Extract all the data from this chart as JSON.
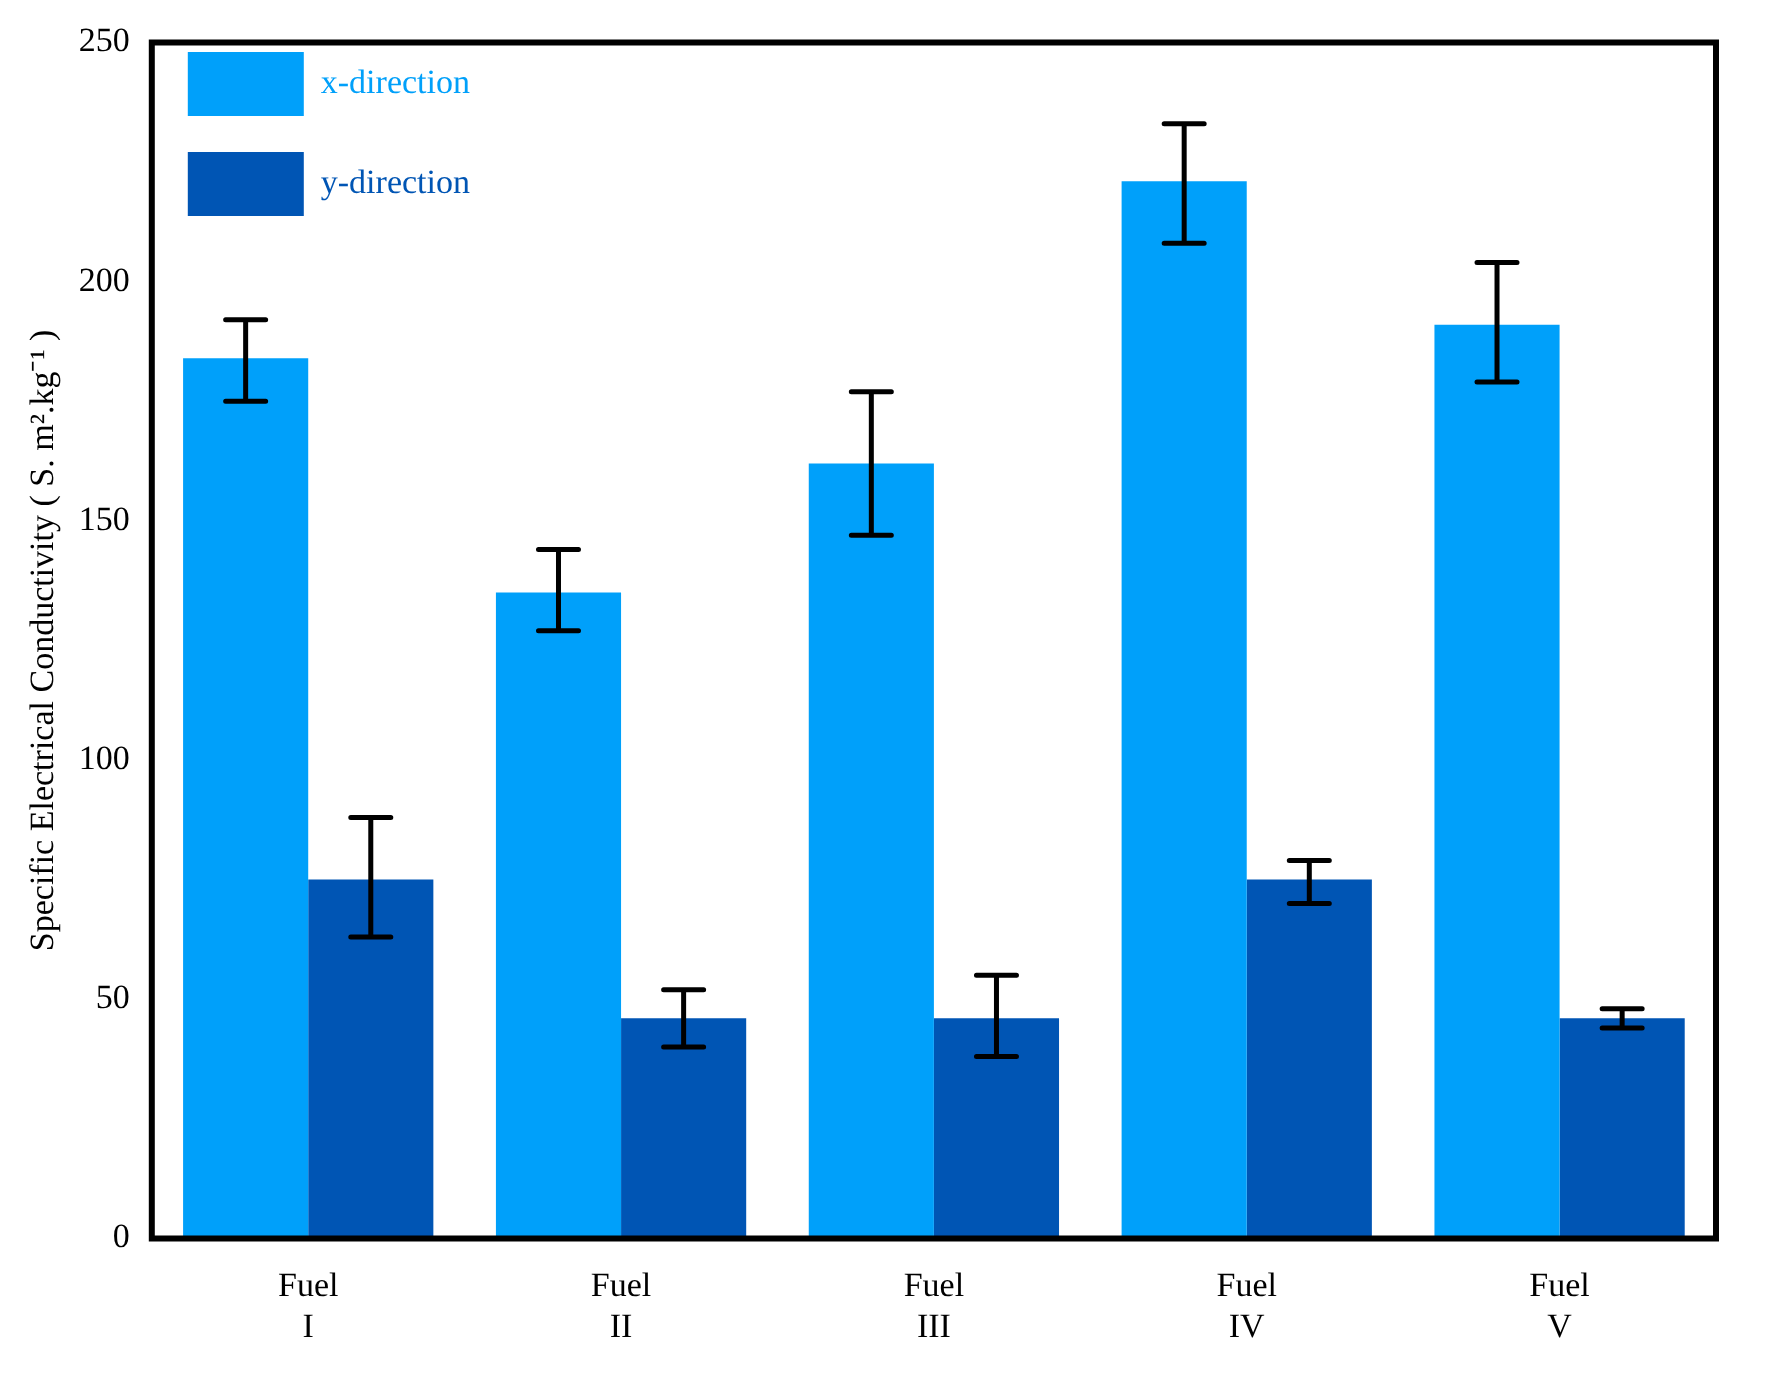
{
  "chart_data": {
    "type": "bar",
    "ylabel": "Specific Electrical Conductivity ( S. m².kg⁻¹ )",
    "categories": [
      "Fuel I",
      "Fuel II",
      "Fuel III",
      "Fuel IV",
      "Fuel V"
    ],
    "series": [
      {
        "name": "x-direction",
        "color": "#00a0fa",
        "values": [
          184,
          135,
          162,
          221,
          191
        ],
        "errors": [
          [
            175,
            192
          ],
          [
            127,
            144
          ],
          [
            147,
            177
          ],
          [
            208,
            233
          ],
          [
            179,
            204
          ]
        ]
      },
      {
        "name": "y-direction",
        "color": "#0055b4",
        "values": [
          75,
          46,
          46,
          75,
          46
        ],
        "errors": [
          [
            63,
            88
          ],
          [
            40,
            52
          ],
          [
            38,
            55
          ],
          [
            70,
            79
          ],
          [
            44,
            48
          ]
        ]
      }
    ],
    "ylim": [
      0,
      250
    ],
    "yticks": [
      0,
      50,
      100,
      150,
      200,
      250
    ],
    "grid": false,
    "legend": "top left"
  }
}
